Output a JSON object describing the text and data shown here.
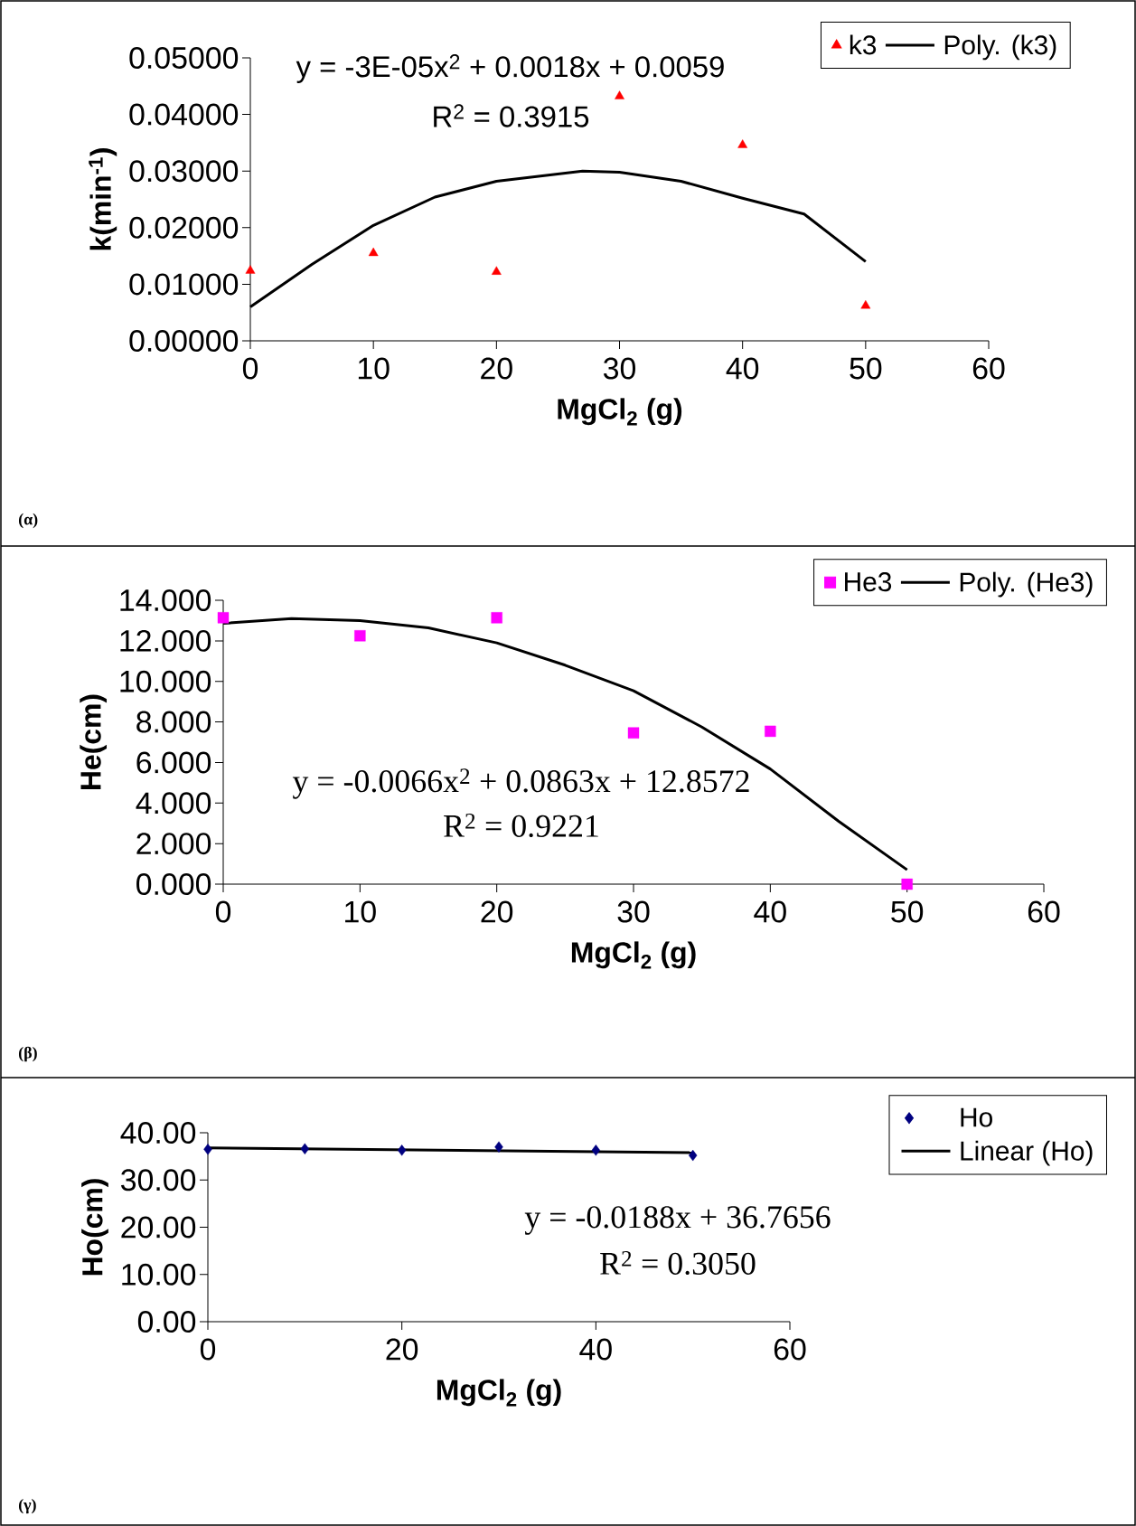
{
  "chart_data": [
    {
      "type": "scatter",
      "xlabel": "MgCl$_{2}$ (g)",
      "ylabel": "k(min$^{-1}$)",
      "xlim": [
        0,
        60
      ],
      "ylim": [
        0,
        0.05
      ],
      "xticks": [
        0,
        10,
        20,
        30,
        40,
        50,
        60
      ],
      "yticks": [
        {
          "value": 0,
          "label": "0.00000"
        },
        {
          "value": 0.01,
          "label": "0.01000"
        },
        {
          "value": 0.02,
          "label": "0.02000"
        },
        {
          "value": 0.03,
          "label": "0.03000"
        },
        {
          "value": 0.04,
          "label": "0.04000"
        },
        {
          "value": 0.05,
          "label": "0.05000"
        }
      ],
      "legend": "top right",
      "annotations": [
        "y = -3E-05x$^{2}$ + 0.0018x + 0.0059",
        "R$^{2}$ = 0.3915",
        "(α)"
      ],
      "series": [
        {
          "name": "k3",
          "color": "#ff0000",
          "marker": "triangle",
          "x": [
            0,
            10,
            20,
            30,
            40,
            50
          ],
          "values": [
            0.0124,
            0.0155,
            0.0122,
            0.0432,
            0.0346,
            0.0062
          ]
        },
        {
          "name": "Poly. (k3)",
          "type": "line",
          "color": "#000000",
          "marker": "none",
          "x": [
            0,
            5,
            10,
            15,
            20,
            27,
            30,
            35,
            40,
            45,
            50
          ],
          "values": [
            0.006,
            0.0135,
            0.0204,
            0.0254,
            0.0282,
            0.03,
            0.0298,
            0.0282,
            0.0252,
            0.0224,
            0.014
          ]
        }
      ]
    },
    {
      "type": "scatter",
      "xlabel": "MgCl$_{2}$ (g)",
      "ylabel": "He(cm)",
      "xlim": [
        0,
        60
      ],
      "ylim": [
        0,
        14
      ],
      "xticks": [
        0,
        10,
        20,
        30,
        40,
        50,
        60
      ],
      "yticks": [
        {
          "value": 0,
          "label": "0.000"
        },
        {
          "value": 2,
          "label": "2.000"
        },
        {
          "value": 4,
          "label": "4.000"
        },
        {
          "value": 6,
          "label": "6.000"
        },
        {
          "value": 8,
          "label": "8.000"
        },
        {
          "value": 10,
          "label": "10.000"
        },
        {
          "value": 12,
          "label": "12.000"
        },
        {
          "value": 14,
          "label": "14.000"
        }
      ],
      "legend": "top right",
      "annotations": [
        "y = -0.0066x$^{2}$ + 0.0863x + 12.8572",
        "R$^{2}$ = 0.9221",
        "(β)"
      ],
      "series": [
        {
          "name": "He3",
          "color": "#ff00ff",
          "marker": "square",
          "x": [
            0,
            10,
            20,
            30,
            40,
            50
          ],
          "values": [
            13.14,
            12.25,
            13.14,
            7.46,
            7.54,
            0
          ]
        },
        {
          "name": "Poly. (He3)",
          "type": "line",
          "color": "#000000",
          "marker": "none",
          "x": [
            0,
            5,
            10,
            15,
            20,
            25,
            30,
            35,
            40,
            45,
            50
          ],
          "values": [
            12.86,
            13.1,
            13.0,
            12.64,
            11.9,
            10.8,
            9.54,
            7.75,
            5.68,
            3.1,
            0.71
          ]
        }
      ]
    },
    {
      "type": "scatter",
      "xlabel": "MgCl$_{2}$ (g)",
      "ylabel": "Ho(cm)",
      "xlim": [
        0,
        60
      ],
      "ylim": [
        0,
        40
      ],
      "xticks": [
        0,
        20,
        40,
        60
      ],
      "yticks": [
        {
          "value": 0,
          "label": "0.00"
        },
        {
          "value": 10,
          "label": "10.00"
        },
        {
          "value": 20,
          "label": "20.00"
        },
        {
          "value": 30,
          "label": "30.00"
        },
        {
          "value": 40,
          "label": "40.00"
        }
      ],
      "legend": "right",
      "annotations": [
        "y = -0.0188x + 36.7656",
        "R$^{2}$ = 0.3050",
        "(γ)"
      ],
      "series": [
        {
          "name": "Ho",
          "color": "#000080",
          "marker": "diamond",
          "x": [
            0,
            10,
            20,
            30,
            40,
            50
          ],
          "values": [
            36.5,
            36.6,
            36.3,
            37.0,
            36.3,
            35.2
          ]
        },
        {
          "name": "Linear (Ho)",
          "type": "line",
          "color": "#000000",
          "marker": "none",
          "x": [
            0,
            50
          ],
          "values": [
            36.8,
            35.8
          ]
        }
      ]
    }
  ]
}
